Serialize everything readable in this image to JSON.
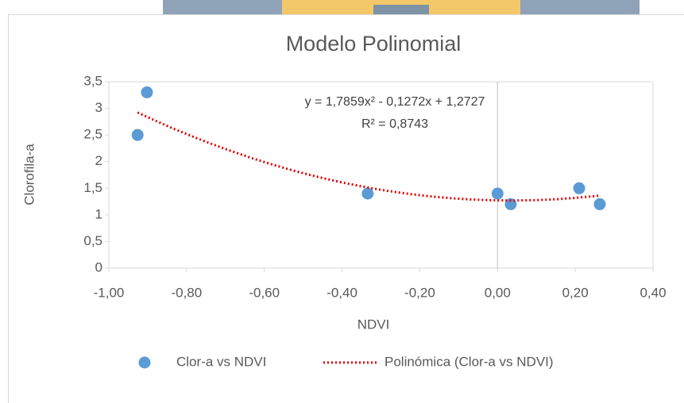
{
  "chart_data": {
    "type": "scatter",
    "title": "Modelo Polinomial",
    "xlabel": "NDVI",
    "ylabel": "Clorofila-a",
    "series": [
      {
        "name": "Clor-a vs NDVI",
        "color": "#5b9bd5",
        "x": [
          -0.926,
          -0.902,
          -0.334,
          0.0,
          0.034,
          0.21,
          0.263
        ],
        "values": [
          2.5,
          3.3,
          1.4,
          1.4,
          1.2,
          1.5,
          1.2
        ]
      }
    ],
    "trendline": {
      "name": "Polinómica (Clor-a vs NDVI)",
      "color": "#e00000",
      "coefficients": [
        1.7859,
        -0.1272,
        1.2727
      ],
      "equation": "y = 1,7859x² - 0,1272x + 1,2727",
      "r2": "R² = 0,8743"
    },
    "xlim": [
      -1.0,
      0.4
    ],
    "xticks": [
      {
        "value": -1.0,
        "label": "-1,00"
      },
      {
        "value": -0.8,
        "label": "-0,80"
      },
      {
        "value": -0.6,
        "label": "-0,60"
      },
      {
        "value": -0.4,
        "label": "-0,40"
      },
      {
        "value": -0.2,
        "label": "-0,20"
      },
      {
        "value": 0.0,
        "label": "0,00"
      },
      {
        "value": 0.2,
        "label": "0,20"
      },
      {
        "value": 0.4,
        "label": "0,40"
      }
    ],
    "ylim": [
      0,
      3.5
    ],
    "yticks": [
      0,
      {
        "value": 0.5,
        "label": "0,5"
      },
      1,
      {
        "value": 1.5,
        "label": "1,5"
      },
      2,
      {
        "value": 2.5,
        "label": "2,5"
      },
      3,
      {
        "value": 3.5,
        "label": "3,5"
      }
    ],
    "legend": "bottom"
  }
}
